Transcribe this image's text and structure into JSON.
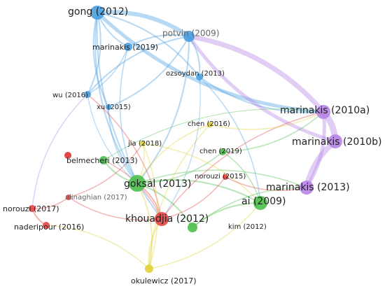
{
  "nodes": [
    {
      "label": "gong (2012)"
    },
    {
      "label": "potvin (2009)"
    },
    {
      "label": "marinakis (2019)"
    },
    {
      "label": "ozsoydan (2013)"
    },
    {
      "label": "wu (2016)"
    },
    {
      "label": "xu (2015)"
    },
    {
      "label": "marinakis (2010a)"
    },
    {
      "label": "marinakis (2010b)"
    },
    {
      "label": "chen (2016)"
    },
    {
      "label": "jia (2018)"
    },
    {
      "label": "chen (2019)"
    },
    {
      "label": "belmecheri (2013)"
    },
    {
      "label": "norouzi (2015)"
    },
    {
      "label": "goksal (2013)"
    },
    {
      "label": "marinakis (2013)"
    },
    {
      "label": "ai (2009)"
    },
    {
      "label": "alinaghian (2017)"
    },
    {
      "label": "norouzi (2017)"
    },
    {
      "label": "naderipour (2016)"
    },
    {
      "label": "khouadjia (2012)"
    },
    {
      "label": "kim (2012)"
    },
    {
      "label": "okulewicz (2017)"
    }
  ]
}
